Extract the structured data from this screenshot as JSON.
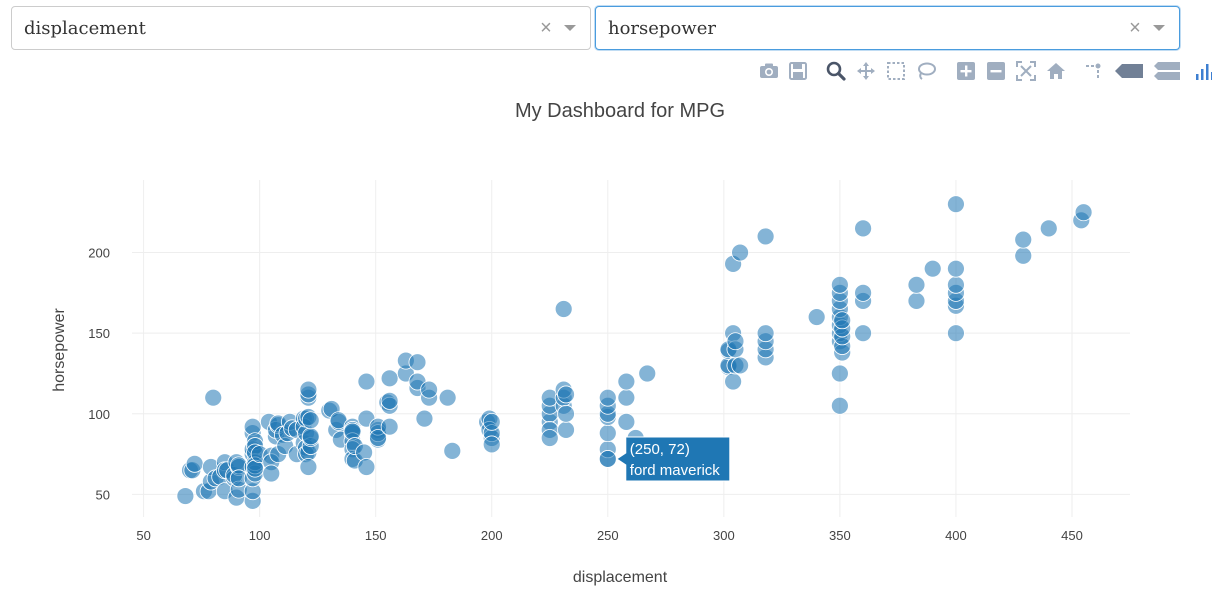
{
  "controls": {
    "x_dropdown": {
      "value": "displacement",
      "clear_icon": "×"
    },
    "y_dropdown": {
      "value": "horsepower",
      "clear_icon": "×"
    }
  },
  "modebar": {
    "buttons": [
      "camera-icon",
      "save-icon",
      "zoom-icon",
      "pan-icon",
      "box-select-icon",
      "lasso-select-icon",
      "zoom-in-icon",
      "zoom-out-icon",
      "autoscale-icon",
      "reset-axes-icon",
      "spike-lines-icon",
      "hover-closest-icon",
      "hover-compare-icon",
      "plotly-logo-icon"
    ]
  },
  "colors": {
    "marker": "#1f77b4",
    "grid": "#eeeeee",
    "text": "#444444",
    "hover_bg": "#1f77b4"
  },
  "hover": {
    "line1": "(250, 72)",
    "line2": "ford maverick",
    "x": 250,
    "y": 72
  },
  "chart_data": {
    "type": "scatter",
    "title": "My Dashboard for MPG",
    "xlabel": "displacement",
    "ylabel": "horsepower",
    "xlim": [
      45,
      475
    ],
    "ylim": [
      36,
      245
    ],
    "x_ticks": [
      50,
      100,
      150,
      200,
      250,
      300,
      350,
      400,
      450
    ],
    "y_ticks": [
      50,
      100,
      150,
      200
    ],
    "grid": true,
    "points": [
      [
        68,
        49
      ],
      [
        70,
        65
      ],
      [
        71,
        65
      ],
      [
        72,
        69
      ],
      [
        76,
        52
      ],
      [
        78,
        52
      ],
      [
        79,
        58
      ],
      [
        79,
        67
      ],
      [
        80,
        110
      ],
      [
        81,
        60
      ],
      [
        83,
        61
      ],
      [
        85,
        70
      ],
      [
        85,
        65
      ],
      [
        85,
        52
      ],
      [
        86,
        65
      ],
      [
        89,
        60
      ],
      [
        89,
        62
      ],
      [
        90,
        48
      ],
      [
        90,
        70
      ],
      [
        91,
        53
      ],
      [
        91,
        67
      ],
      [
        91,
        68
      ],
      [
        91,
        60
      ],
      [
        97,
        46
      ],
      [
        97,
        88
      ],
      [
        97,
        75
      ],
      [
        97,
        78
      ],
      [
        97,
        92
      ],
      [
        97,
        52
      ],
      [
        97,
        67
      ],
      [
        97,
        60
      ],
      [
        98,
        83
      ],
      [
        98,
        80
      ],
      [
        98,
        63
      ],
      [
        98,
        70
      ],
      [
        98,
        76
      ],
      [
        98,
        68
      ],
      [
        98,
        66
      ],
      [
        100,
        75
      ],
      [
        104,
        95
      ],
      [
        105,
        74
      ],
      [
        105,
        70
      ],
      [
        105,
        63
      ],
      [
        107,
        86
      ],
      [
        107,
        90
      ],
      [
        108,
        75
      ],
      [
        108,
        93
      ],
      [
        108,
        94
      ],
      [
        110,
        87
      ],
      [
        111,
        80
      ],
      [
        112,
        88
      ],
      [
        113,
        95
      ],
      [
        114,
        91
      ],
      [
        116,
        75
      ],
      [
        116,
        90
      ],
      [
        119,
        97
      ],
      [
        119,
        82
      ],
      [
        119,
        92
      ],
      [
        120,
        88
      ],
      [
        120,
        97
      ],
      [
        120,
        79
      ],
      [
        120,
        75
      ],
      [
        121,
        76
      ],
      [
        121,
        98
      ],
      [
        121,
        110
      ],
      [
        121,
        112
      ],
      [
        121,
        115
      ],
      [
        121,
        67
      ],
      [
        122,
        80
      ],
      [
        122,
        85
      ],
      [
        122,
        86
      ],
      [
        122,
        96
      ],
      [
        130,
        102
      ],
      [
        131,
        103
      ],
      [
        133,
        90
      ],
      [
        134,
        95
      ],
      [
        134,
        96
      ],
      [
        135,
        84
      ],
      [
        140,
        92
      ],
      [
        140,
        88
      ],
      [
        140,
        90
      ],
      [
        140,
        83
      ],
      [
        140,
        89
      ],
      [
        140,
        78
      ],
      [
        140,
        72
      ],
      [
        141,
        71
      ],
      [
        141,
        80
      ],
      [
        145,
        76
      ],
      [
        146,
        97
      ],
      [
        146,
        120
      ],
      [
        146,
        67
      ],
      [
        151,
        90
      ],
      [
        151,
        84
      ],
      [
        151,
        88
      ],
      [
        151,
        92
      ],
      [
        151,
        85
      ],
      [
        155,
        107
      ],
      [
        156,
        92
      ],
      [
        156,
        105
      ],
      [
        156,
        108
      ],
      [
        156,
        122
      ],
      [
        163,
        125
      ],
      [
        163,
        133
      ],
      [
        168,
        116
      ],
      [
        168,
        120
      ],
      [
        168,
        132
      ],
      [
        171,
        97
      ],
      [
        173,
        110
      ],
      [
        173,
        115
      ],
      [
        181,
        110
      ],
      [
        183,
        77
      ],
      [
        198,
        95
      ],
      [
        199,
        97
      ],
      [
        199,
        90
      ],
      [
        200,
        85
      ],
      [
        200,
        88
      ],
      [
        200,
        81
      ],
      [
        200,
        95
      ],
      [
        225,
        95
      ],
      [
        225,
        100
      ],
      [
        225,
        105
      ],
      [
        225,
        110
      ],
      [
        225,
        90
      ],
      [
        225,
        85
      ],
      [
        231,
        105
      ],
      [
        231,
        110
      ],
      [
        231,
        115
      ],
      [
        231,
        165
      ],
      [
        232,
        90
      ],
      [
        232,
        100
      ],
      [
        232,
        112
      ],
      [
        250,
        72
      ],
      [
        250,
        78
      ],
      [
        250,
        88
      ],
      [
        250,
        98
      ],
      [
        250,
        100
      ],
      [
        250,
        105
      ],
      [
        250,
        110
      ],
      [
        258,
        110
      ],
      [
        258,
        95
      ],
      [
        258,
        120
      ],
      [
        262,
        85
      ],
      [
        267,
        125
      ],
      [
        302,
        129
      ],
      [
        302,
        130
      ],
      [
        302,
        139
      ],
      [
        302,
        140
      ],
      [
        304,
        120
      ],
      [
        304,
        150
      ],
      [
        304,
        193
      ],
      [
        305,
        130
      ],
      [
        305,
        140
      ],
      [
        305,
        145
      ],
      [
        307,
        130
      ],
      [
        307,
        200
      ],
      [
        318,
        135
      ],
      [
        318,
        140
      ],
      [
        318,
        145
      ],
      [
        318,
        150
      ],
      [
        318,
        210
      ],
      [
        340,
        160
      ],
      [
        350,
        105
      ],
      [
        350,
        125
      ],
      [
        350,
        145
      ],
      [
        350,
        150
      ],
      [
        350,
        155
      ],
      [
        350,
        160
      ],
      [
        350,
        165
      ],
      [
        350,
        170
      ],
      [
        350,
        175
      ],
      [
        350,
        180
      ],
      [
        351,
        138
      ],
      [
        351,
        142
      ],
      [
        351,
        148
      ],
      [
        351,
        153
      ],
      [
        351,
        158
      ],
      [
        360,
        150
      ],
      [
        360,
        170
      ],
      [
        360,
        175
      ],
      [
        360,
        215
      ],
      [
        383,
        170
      ],
      [
        383,
        180
      ],
      [
        390,
        190
      ],
      [
        400,
        150
      ],
      [
        400,
        167
      ],
      [
        400,
        170
      ],
      [
        400,
        175
      ],
      [
        400,
        180
      ],
      [
        400,
        190
      ],
      [
        400,
        230
      ],
      [
        429,
        198
      ],
      [
        429,
        208
      ],
      [
        440,
        215
      ],
      [
        454,
        220
      ],
      [
        455,
        225
      ]
    ]
  }
}
